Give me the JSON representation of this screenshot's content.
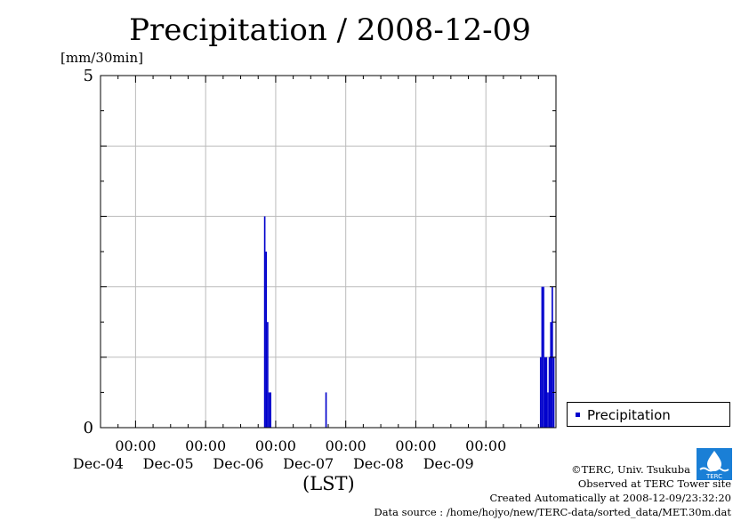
{
  "chart_data": {
    "type": "bar",
    "title": "Precipitation / 2008-12-09",
    "ylabel": "[mm/30min]",
    "xlabel": "(LST)",
    "ylim": [
      0,
      5
    ],
    "y_ticks": [
      "0",
      "5"
    ],
    "x_ticks": [
      {
        "time": "00:00",
        "date": "Dec-04"
      },
      {
        "time": "00:00",
        "date": "Dec-05"
      },
      {
        "time": "00:00",
        "date": "Dec-06"
      },
      {
        "time": "00:00",
        "date": "Dec-07"
      },
      {
        "time": "00:00",
        "date": "Dec-08"
      },
      {
        "time": "00:00",
        "date": "Dec-09"
      }
    ],
    "grid": true,
    "legend_position": "right",
    "series": [
      {
        "name": "Precipitation",
        "color": "#0000cc",
        "points": [
          {
            "x": "2008-12-05 20:00",
            "y": 3.0
          },
          {
            "x": "2008-12-05 20:30",
            "y": 2.5
          },
          {
            "x": "2008-12-05 21:00",
            "y": 1.5
          },
          {
            "x": "2008-12-05 21:30",
            "y": 0.5
          },
          {
            "x": "2008-12-05 22:00",
            "y": 0.5
          },
          {
            "x": "2008-12-06 17:00",
            "y": 0.5
          },
          {
            "x": "2008-12-09 18:30",
            "y": 1.0
          },
          {
            "x": "2008-12-09 19:00",
            "y": 2.0
          },
          {
            "x": "2008-12-09 19:30",
            "y": 2.0
          },
          {
            "x": "2008-12-09 20:00",
            "y": 1.0
          },
          {
            "x": "2008-12-09 20:30",
            "y": 1.0
          },
          {
            "x": "2008-12-09 21:00",
            "y": 0.5
          },
          {
            "x": "2008-12-09 21:30",
            "y": 1.0
          },
          {
            "x": "2008-12-09 22:00",
            "y": 1.5
          },
          {
            "x": "2008-12-09 22:30",
            "y": 2.0
          },
          {
            "x": "2008-12-09 23:00",
            "y": 1.0
          }
        ]
      }
    ]
  },
  "footer": {
    "credit": "©TERC, Univ. Tsukuba",
    "observed": "Observed at TERC Tower site",
    "created": "Created Automatically at 2008-12-09/23:32:20",
    "source": "Data source : /home/hojyo/new/TERC-data/sorted_data/MET.30m.dat",
    "logo_text": "TERC"
  }
}
